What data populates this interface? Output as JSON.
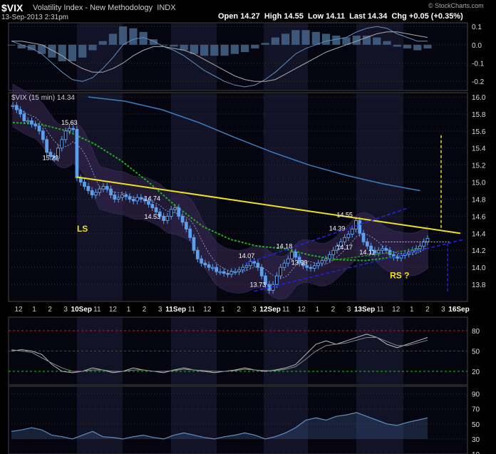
{
  "header": {
    "symbol": "$VIX",
    "name": "Volatility Index - New Methodology",
    "exchange": "INDX",
    "date": "13-Sep-2013 2:31pm",
    "open_label": "Open",
    "open": "14.27",
    "high_label": "High",
    "high": "14.55",
    "low_label": "Low",
    "low": "14.11",
    "last_label": "Last",
    "last": "14.34",
    "chg_label": "Chg",
    "chg": "+0.05 (+0.35%)",
    "brand": "© StockCharts.com"
  },
  "colors": {
    "background": "#000000",
    "candle": "#5aa0f0",
    "bollinger": "#3a2a55",
    "sma_slow": "#3a7fc0",
    "sma_fast": "#1faa1f",
    "trendline": "#f0e020",
    "channel": "#2222dd",
    "annotation": "#f0e020",
    "ob_line": "#c02020",
    "os_line": "#20c020"
  },
  "chart_data": [
    {
      "type": "line",
      "panel": "macd",
      "ylim": [
        -0.25,
        0.12
      ],
      "yticks": [
        0.1,
        0.0,
        -0.1,
        -0.2
      ],
      "series": [
        {
          "values": [
            0.02,
            0.0,
            -0.02,
            -0.05,
            -0.1,
            -0.15,
            -0.19,
            -0.2,
            -0.18,
            -0.13,
            -0.07,
            0.0,
            0.03,
            0.04,
            0.02,
            -0.01,
            -0.03,
            -0.06,
            -0.1,
            -0.14,
            -0.17,
            -0.2,
            -0.22,
            -0.23,
            -0.22,
            -0.19,
            -0.15,
            -0.1,
            -0.05,
            -0.02,
            0.0,
            0.02,
            0.03,
            0.04,
            0.07,
            0.09,
            0.1,
            0.09,
            0.06,
            0.04,
            0.02,
            0.02
          ]
        },
        {
          "values": [
            0.02,
            0.02,
            0.01,
            0.0,
            -0.03,
            -0.06,
            -0.1,
            -0.13,
            -0.15,
            -0.15,
            -0.13,
            -0.1,
            -0.06,
            -0.03,
            -0.01,
            -0.01,
            -0.02,
            -0.03,
            -0.05,
            -0.08,
            -0.11,
            -0.14,
            -0.17,
            -0.19,
            -0.2,
            -0.2,
            -0.19,
            -0.16,
            -0.13,
            -0.1,
            -0.07,
            -0.04,
            -0.02,
            0.0,
            0.02,
            0.04,
            0.06,
            0.07,
            0.07,
            0.06,
            0.05,
            0.04
          ]
        }
      ],
      "histogram": [
        0.0,
        -0.02,
        -0.03,
        -0.05,
        -0.07,
        -0.09,
        -0.09,
        -0.07,
        -0.03,
        0.02,
        0.06,
        0.1,
        0.09,
        0.07,
        0.03,
        0.0,
        -0.01,
        -0.03,
        -0.05,
        -0.06,
        -0.06,
        -0.06,
        -0.05,
        -0.04,
        -0.02,
        0.01,
        0.04,
        0.06,
        0.08,
        0.08,
        0.07,
        0.06,
        0.05,
        0.04,
        0.05,
        0.05,
        0.04,
        0.02,
        -0.01,
        -0.02,
        -0.03,
        -0.02
      ]
    },
    {
      "type": "candlestick",
      "panel": "price",
      "title": "$VIX (15 min) 14.34",
      "ylim": [
        13.6,
        16.05
      ],
      "yticks": [
        16.0,
        15.8,
        15.6,
        15.4,
        15.2,
        15.0,
        14.8,
        14.6,
        14.4,
        14.2,
        14.0,
        13.8
      ],
      "xlabels": [
        "12",
        "1",
        "2",
        "3",
        "10Sep",
        "11",
        "12",
        "1",
        "2",
        "3",
        "11Sep",
        "11",
        "12",
        "1",
        "2",
        "3",
        "12Sep",
        "11",
        "12",
        "1",
        "2",
        "3",
        "13Sep",
        "11",
        "12",
        "1",
        "2",
        "3",
        "16Sep"
      ],
      "closes": [
        15.9,
        15.85,
        15.8,
        15.72,
        15.72,
        15.68,
        15.66,
        15.6,
        15.5,
        15.35,
        15.3,
        15.28,
        15.4,
        15.5,
        15.6,
        15.63,
        15.62,
        15.05,
        15.0,
        14.95,
        14.9,
        14.85,
        14.88,
        14.92,
        14.95,
        14.92,
        14.85,
        14.8,
        14.82,
        14.85,
        14.83,
        14.8,
        14.78,
        14.82,
        14.8,
        14.78,
        14.74,
        14.7,
        14.65,
        14.6,
        14.55,
        14.6,
        14.68,
        14.7,
        14.6,
        14.53,
        14.45,
        14.35,
        14.2,
        14.1,
        14.05,
        14.03,
        14.0,
        14.0,
        13.95,
        13.95,
        13.93,
        13.92,
        13.95,
        13.95,
        13.97,
        14.0,
        14.02,
        14.07,
        14.05,
        14.0,
        13.9,
        13.8,
        13.73,
        13.8,
        13.9,
        14.0,
        14.05,
        14.1,
        14.18,
        14.12,
        14.05,
        14.02,
        14.0,
        13.99,
        14.02,
        14.05,
        14.08,
        14.1,
        14.15,
        14.2,
        14.25,
        14.3,
        14.35,
        14.39,
        14.45,
        14.55,
        14.4,
        14.3,
        14.25,
        14.2,
        14.17,
        14.2,
        14.22,
        14.2,
        14.15,
        14.12,
        14.11,
        14.14,
        14.16,
        14.18,
        14.2,
        14.22,
        14.25,
        14.3,
        14.34
      ],
      "sma_slow": {
        "values": [
          16.0,
          15.95,
          15.85,
          15.7,
          15.52,
          15.35,
          15.2,
          15.08,
          14.98,
          14.9
        ],
        "x_start": 20,
        "x_end": 108
      },
      "sma_fast": {
        "values": [
          15.7,
          15.68,
          15.6,
          15.45,
          15.25,
          15.0,
          14.72,
          14.48,
          14.33,
          14.25,
          14.22,
          14.14,
          14.09,
          14.08,
          14.12,
          14.2
        ],
        "x_start": 0,
        "x_end": 108
      },
      "annotations": [
        {
          "text": "LS",
          "x": 17,
          "y": 14.42
        },
        {
          "text": "RS ?",
          "x": 100,
          "y": 13.87
        }
      ],
      "labels": [
        {
          "text": "15.63",
          "x": 15,
          "y": 15.63
        },
        {
          "text": "15.22",
          "x": 10,
          "y": 15.22
        },
        {
          "text": "14.74",
          "x": 37,
          "y": 14.74
        },
        {
          "text": "14.53",
          "x": 37,
          "y": 14.53
        },
        {
          "text": "14.07",
          "x": 62,
          "y": 14.07
        },
        {
          "text": "14.18",
          "x": 72,
          "y": 14.18
        },
        {
          "text": "13.99",
          "x": 76,
          "y": 13.99
        },
        {
          "text": "13.73",
          "x": 65,
          "y": 13.73
        },
        {
          "text": "14.39",
          "x": 86,
          "y": 14.39
        },
        {
          "text": "14.55",
          "x": 88,
          "y": 14.55
        },
        {
          "text": "14.17",
          "x": 88,
          "y": 14.17
        },
        {
          "text": "14.11",
          "x": 94,
          "y": 14.11
        }
      ]
    },
    {
      "type": "line",
      "panel": "indicator-1",
      "ylim": [
        0,
        100
      ],
      "yticks": [
        80,
        50,
        20
      ],
      "series": [
        {
          "values": [
            50,
            52,
            50,
            45,
            30,
            20,
            18,
            20,
            25,
            22,
            18,
            20,
            25,
            22,
            20,
            18,
            22,
            25,
            22,
            20,
            18,
            20,
            22,
            25,
            22,
            20,
            22,
            25,
            30,
            45,
            60,
            65,
            60,
            65,
            70,
            75,
            70,
            60,
            55,
            60,
            65,
            70
          ]
        },
        {
          "values": [
            52,
            50,
            48,
            40,
            32,
            25,
            20,
            20,
            22,
            22,
            20,
            20,
            22,
            22,
            20,
            20,
            21,
            23,
            22,
            21,
            20,
            20,
            21,
            23,
            22,
            21,
            21,
            23,
            27,
            38,
            50,
            58,
            60,
            62,
            66,
            70,
            70,
            64,
            58,
            58,
            62,
            66
          ]
        }
      ]
    },
    {
      "type": "line",
      "panel": "indicator-2",
      "ylim": [
        10,
        100
      ],
      "yticks": [
        90,
        70,
        50,
        30,
        10
      ],
      "series": [
        {
          "values": [
            40,
            42,
            45,
            42,
            35,
            33,
            30,
            35,
            40,
            33,
            32,
            30,
            33,
            35,
            32,
            30,
            35,
            38,
            35,
            32,
            30,
            33,
            35,
            38,
            35,
            30,
            33,
            38,
            45,
            55,
            58,
            55,
            60,
            62,
            65,
            60,
            55,
            50,
            48,
            52,
            55,
            58
          ]
        }
      ]
    }
  ]
}
